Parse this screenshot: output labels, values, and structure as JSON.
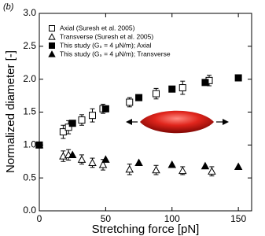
{
  "chart_data": {
    "type": "scatter",
    "panel_label": "(b)",
    "xlabel": "Stretching force [pN]",
    "ylabel": "Normalized diameter [-]",
    "xlim": [
      0,
      160
    ],
    "ylim": [
      0,
      3
    ],
    "xticks": [
      0,
      50,
      100,
      150
    ],
    "yticks": [
      {
        "value": 0,
        "label": "0.0"
      },
      0.5,
      {
        "value": 1,
        "label": "1.0"
      },
      1.5,
      {
        "value": 2,
        "label": "2.0"
      },
      2.5,
      {
        "value": 3,
        "label": "3.0"
      }
    ],
    "series": [
      {
        "name": "Axial (Suresh et al. 2005)",
        "color": "#000000",
        "marker": "square-open",
        "x": [
          18,
          22,
          32,
          40,
          48,
          68,
          88,
          108,
          128
        ],
        "values": [
          1.2,
          1.27,
          1.38,
          1.45,
          1.55,
          1.65,
          1.78,
          1.87,
          1.98
        ],
        "errors": [
          0.1,
          0.1,
          0.08,
          0.1,
          0.07,
          0.07,
          0.08,
          0.1,
          0.08
        ]
      },
      {
        "name": "Transverse (Suresh et al. 2005)",
        "color": "#000000",
        "marker": "triangle-open",
        "x": [
          18,
          22,
          32,
          40,
          48,
          68,
          88,
          108,
          130
        ],
        "values": [
          0.83,
          0.85,
          0.78,
          0.73,
          0.7,
          0.63,
          0.62,
          0.61,
          0.6
        ],
        "errors": [
          0.08,
          0.08,
          0.07,
          0.07,
          0.08,
          0.08,
          0.07,
          0.06,
          0.07
        ]
      },
      {
        "name": "This study (Gₛ = 4 μN/m); Axial",
        "color": "#000000",
        "marker": "square-filled",
        "x": [
          0,
          25,
          50,
          75,
          100,
          125,
          150
        ],
        "values": [
          1.0,
          1.33,
          1.55,
          1.72,
          1.85,
          1.95,
          2.02
        ]
      },
      {
        "name": "This study (Gₛ = 4 μN/m); Transverse",
        "color": "#000000",
        "marker": "triangle-filled",
        "x": [
          0,
          25,
          50,
          75,
          100,
          125,
          150
        ],
        "values": [
          1.0,
          0.85,
          0.78,
          0.73,
          0.7,
          0.68,
          0.67
        ]
      }
    ]
  }
}
